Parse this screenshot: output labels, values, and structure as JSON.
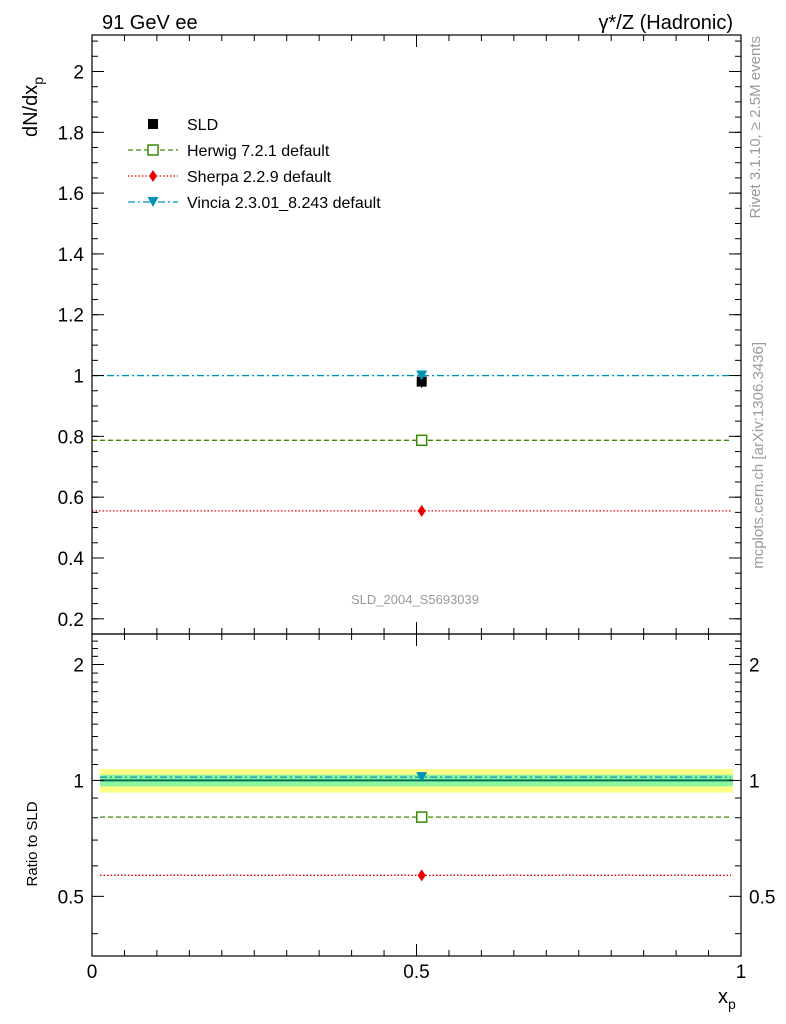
{
  "header": {
    "left": "91 GeV ee",
    "right": "γ*/Z (Hadronic)"
  },
  "side_labels": {
    "rivet": "Rivet 3.1.10, ≥ 2.5M events",
    "mcplots": "mcplots.cern.ch [arXiv:1306.3436]"
  },
  "watermark": "SLD_2004_S5693039",
  "chart_data": [
    {
      "type": "scatter",
      "panel": "main",
      "ylabel_main": "dN/dx",
      "ylabel_sub": "p",
      "xlabel_main": "x",
      "xlabel_sub": "p",
      "xlim": [
        0,
        1
      ],
      "ylim": [
        0.15,
        2.12
      ],
      "x_ticks": [
        0,
        0.5,
        1
      ],
      "x_tick_labels": [
        "0",
        "0.5",
        "1"
      ],
      "y_ticks": [
        0.2,
        0.4,
        0.6,
        0.8,
        1,
        1.2,
        1.4,
        1.6,
        1.8,
        2
      ],
      "y_tick_labels": [
        "0.2",
        "0.4",
        "0.6",
        "0.8",
        "1",
        "1.2",
        "1.4",
        "1.6",
        "1.8",
        "2"
      ],
      "legend_position": "top-left",
      "series": [
        {
          "name": "SLD",
          "color": "#000000",
          "marker": "square",
          "line": "none",
          "x": [
            0.508
          ],
          "values": [
            0.98
          ]
        },
        {
          "name": "Herwig 7.2.1 default",
          "color": "#3a8a00",
          "marker": "open-square",
          "line": "dashed",
          "x": [
            0.508
          ],
          "values": [
            0.787
          ]
        },
        {
          "name": "Sherpa 2.2.9 default",
          "color": "#ee0000",
          "marker": "diamond",
          "line": "dotted",
          "x": [
            0.508
          ],
          "values": [
            0.555
          ]
        },
        {
          "name": "Vincia 2.3.01_8.243 default",
          "color": "#0094b4",
          "marker": "triangle-down",
          "line": "dashdot",
          "x": [
            0.508
          ],
          "values": [
            1.0
          ]
        }
      ]
    },
    {
      "type": "scatter",
      "panel": "ratio",
      "ylabel": "Ratio to SLD",
      "xlim": [
        0,
        1
      ],
      "ylim": [
        0.35,
        2.4
      ],
      "y_ticks": [
        0.5,
        1,
        2
      ],
      "y_tick_labels": [
        "0.5",
        "1",
        "2"
      ],
      "uncertainty_bands": [
        {
          "lo": 0.93,
          "hi": 1.07,
          "color": "#ffff88"
        },
        {
          "lo": 0.965,
          "hi": 1.035,
          "color": "#8cf5a0"
        }
      ],
      "reference_line": {
        "value": 1.0,
        "color": "#00705a"
      },
      "series": [
        {
          "name": "Herwig 7.2.1 default",
          "x": [
            0.508
          ],
          "values": [
            0.803
          ]
        },
        {
          "name": "Sherpa 2.2.9 default",
          "x": [
            0.508
          ],
          "values": [
            0.567
          ]
        },
        {
          "name": "Vincia 2.3.01_8.243 default",
          "x": [
            0.508
          ],
          "values": [
            1.02
          ]
        }
      ]
    }
  ]
}
